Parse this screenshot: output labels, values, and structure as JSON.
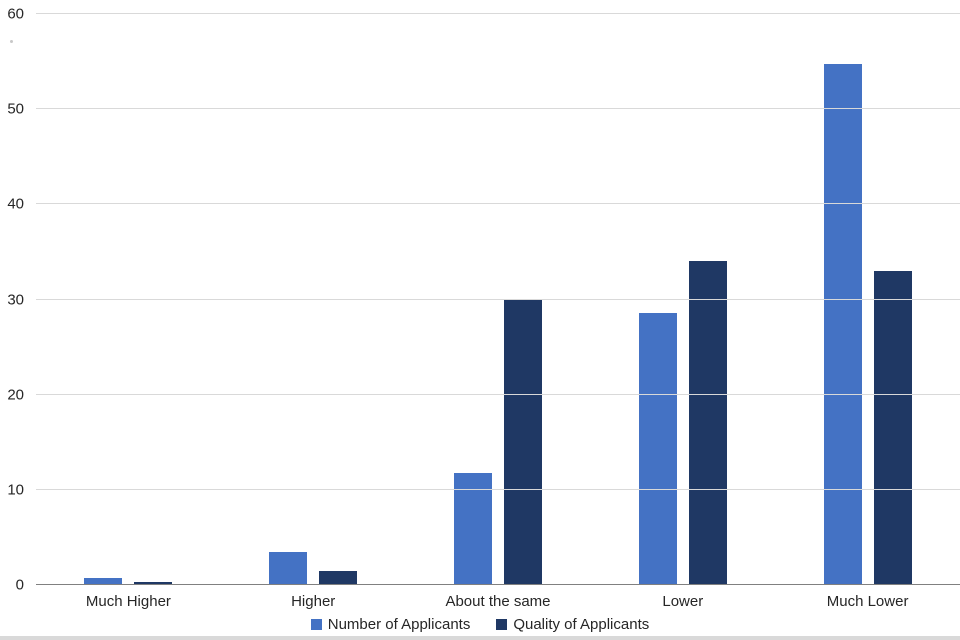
{
  "chart_data": {
    "type": "bar",
    "title": "",
    "xlabel": "",
    "ylabel": "",
    "categories": [
      "Much Higher",
      "Higher",
      "About the same",
      "Lower",
      "Much Lower"
    ],
    "series": [
      {
        "name": "Number of Applicants",
        "color": "#4472C4",
        "values": [
          0.7,
          3.5,
          11.8,
          28.6,
          54.7
        ]
      },
      {
        "name": "Quality of Applicants",
        "color": "#1F3864",
        "values": [
          0.3,
          1.5,
          30,
          34,
          33
        ]
      }
    ],
    "ylim": [
      0,
      60
    ],
    "ytick_step": 10,
    "ytick_labels": [
      "0",
      "10",
      "20",
      "30",
      "40",
      "50",
      "60"
    ],
    "grid": true,
    "gridline_color": "#d9d9d9",
    "axis_line_color": "#808080",
    "legend_position": "bottom"
  }
}
